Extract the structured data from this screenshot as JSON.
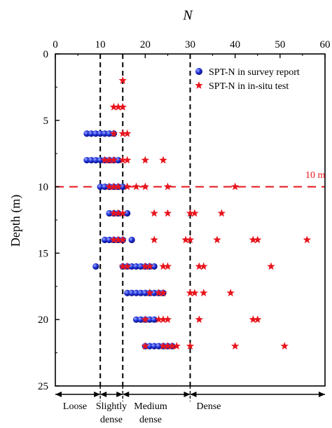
{
  "chart_data": {
    "type": "scatter",
    "xlabel": "N",
    "ylabel": "Depth (m)",
    "xlim": [
      0,
      60
    ],
    "ylim": [
      0,
      25
    ],
    "x_ticks": [
      0,
      10,
      20,
      30,
      40,
      50,
      60
    ],
    "y_ticks": [
      0,
      5,
      10,
      15,
      20,
      25
    ],
    "y_inverted": true,
    "x_axis_position": "top",
    "legend_position": "top-right",
    "colors": {
      "survey": "#1f2fd6",
      "insitu": "#e8141c",
      "reference": "#e8141c"
    },
    "series": [
      {
        "name": "SPT-N in survey report",
        "marker": "circle",
        "points": [
          [
            7,
            6
          ],
          [
            8,
            6
          ],
          [
            9,
            6
          ],
          [
            10,
            6
          ],
          [
            11,
            6
          ],
          [
            12,
            6
          ],
          [
            13,
            6
          ],
          [
            7,
            8
          ],
          [
            8,
            8
          ],
          [
            9,
            8
          ],
          [
            10,
            8
          ],
          [
            11,
            8
          ],
          [
            12,
            8
          ],
          [
            13,
            8
          ],
          [
            14,
            8
          ],
          [
            10,
            10
          ],
          [
            11,
            10
          ],
          [
            12,
            10
          ],
          [
            13,
            10
          ],
          [
            14,
            10
          ],
          [
            15,
            10
          ],
          [
            12,
            12
          ],
          [
            13,
            12
          ],
          [
            14,
            12
          ],
          [
            16,
            12
          ],
          [
            11,
            14
          ],
          [
            12,
            14
          ],
          [
            13,
            14
          ],
          [
            14,
            14
          ],
          [
            15,
            14
          ],
          [
            17,
            14
          ],
          [
            9,
            16
          ],
          [
            15,
            16
          ],
          [
            16,
            16
          ],
          [
            17,
            16
          ],
          [
            18,
            16
          ],
          [
            19,
            16
          ],
          [
            20,
            16
          ],
          [
            21,
            16
          ],
          [
            22,
            16
          ],
          [
            16,
            18
          ],
          [
            17,
            18
          ],
          [
            18,
            18
          ],
          [
            19,
            18
          ],
          [
            20,
            18
          ],
          [
            21,
            18
          ],
          [
            22,
            18
          ],
          [
            23,
            18
          ],
          [
            24,
            18
          ],
          [
            18,
            20
          ],
          [
            19,
            20
          ],
          [
            20,
            20
          ],
          [
            21,
            20
          ],
          [
            22,
            20
          ],
          [
            20,
            22
          ],
          [
            21,
            22
          ],
          [
            22,
            22
          ],
          [
            23,
            22
          ],
          [
            24,
            22
          ],
          [
            25,
            22
          ],
          [
            26,
            22
          ]
        ]
      },
      {
        "name": "SPT-N in in-situ test",
        "marker": "star",
        "points": [
          [
            15,
            2
          ],
          [
            13,
            4
          ],
          [
            14,
            4
          ],
          [
            15,
            4
          ],
          [
            13,
            6
          ],
          [
            15,
            6
          ],
          [
            16,
            6
          ],
          [
            11,
            8
          ],
          [
            12,
            8
          ],
          [
            13,
            8
          ],
          [
            15,
            8
          ],
          [
            16,
            8
          ],
          [
            20,
            8
          ],
          [
            24,
            8
          ],
          [
            12,
            10
          ],
          [
            13,
            10
          ],
          [
            14,
            10
          ],
          [
            16,
            10
          ],
          [
            18,
            10
          ],
          [
            20,
            10
          ],
          [
            25,
            10
          ],
          [
            40,
            10
          ],
          [
            13,
            12
          ],
          [
            14,
            12
          ],
          [
            15,
            12
          ],
          [
            22,
            12
          ],
          [
            25,
            12
          ],
          [
            30,
            12
          ],
          [
            31,
            12
          ],
          [
            37,
            12
          ],
          [
            13,
            14
          ],
          [
            14,
            14
          ],
          [
            15,
            14
          ],
          [
            22,
            14
          ],
          [
            29,
            14
          ],
          [
            30,
            14
          ],
          [
            36,
            14
          ],
          [
            44,
            14
          ],
          [
            45,
            14
          ],
          [
            56,
            14
          ],
          [
            15,
            16
          ],
          [
            16,
            16
          ],
          [
            20,
            16
          ],
          [
            21,
            16
          ],
          [
            24,
            16
          ],
          [
            25,
            16
          ],
          [
            32,
            16
          ],
          [
            33,
            16
          ],
          [
            48,
            16
          ],
          [
            21,
            18
          ],
          [
            23,
            18
          ],
          [
            24,
            18
          ],
          [
            30,
            18
          ],
          [
            31,
            18
          ],
          [
            33,
            18
          ],
          [
            39,
            18
          ],
          [
            20,
            20
          ],
          [
            23,
            20
          ],
          [
            24,
            20
          ],
          [
            25,
            20
          ],
          [
            32,
            20
          ],
          [
            44,
            20
          ],
          [
            45,
            20
          ],
          [
            20,
            22
          ],
          [
            24,
            22
          ],
          [
            25,
            22
          ],
          [
            26,
            22
          ],
          [
            27,
            22
          ],
          [
            30,
            22
          ],
          [
            40,
            22
          ],
          [
            51,
            22
          ]
        ]
      }
    ],
    "reference_line": {
      "depth": 10,
      "label": "10 m"
    },
    "category_boundaries": [
      10,
      15,
      30
    ],
    "categories": [
      {
        "name": "Loose",
        "range": [
          0,
          10
        ]
      },
      {
        "name": "Slightly dense",
        "range": [
          10,
          15
        ]
      },
      {
        "name": "Medium dense",
        "range": [
          15,
          30
        ]
      },
      {
        "name": "Dense",
        "range": [
          30,
          60
        ]
      }
    ]
  },
  "labels": {
    "xlabel": "N",
    "ylabel": "Depth (m)",
    "legend_survey": "SPT-N in survey report",
    "legend_insitu": "SPT-N in in-situ test",
    "ref_label": "10 m",
    "cat_loose": "Loose",
    "cat_slightly_1": "Slightly",
    "cat_slightly_2": "dense",
    "cat_medium_1": "Medium",
    "cat_medium_2": "dense",
    "cat_dense": "Dense"
  }
}
